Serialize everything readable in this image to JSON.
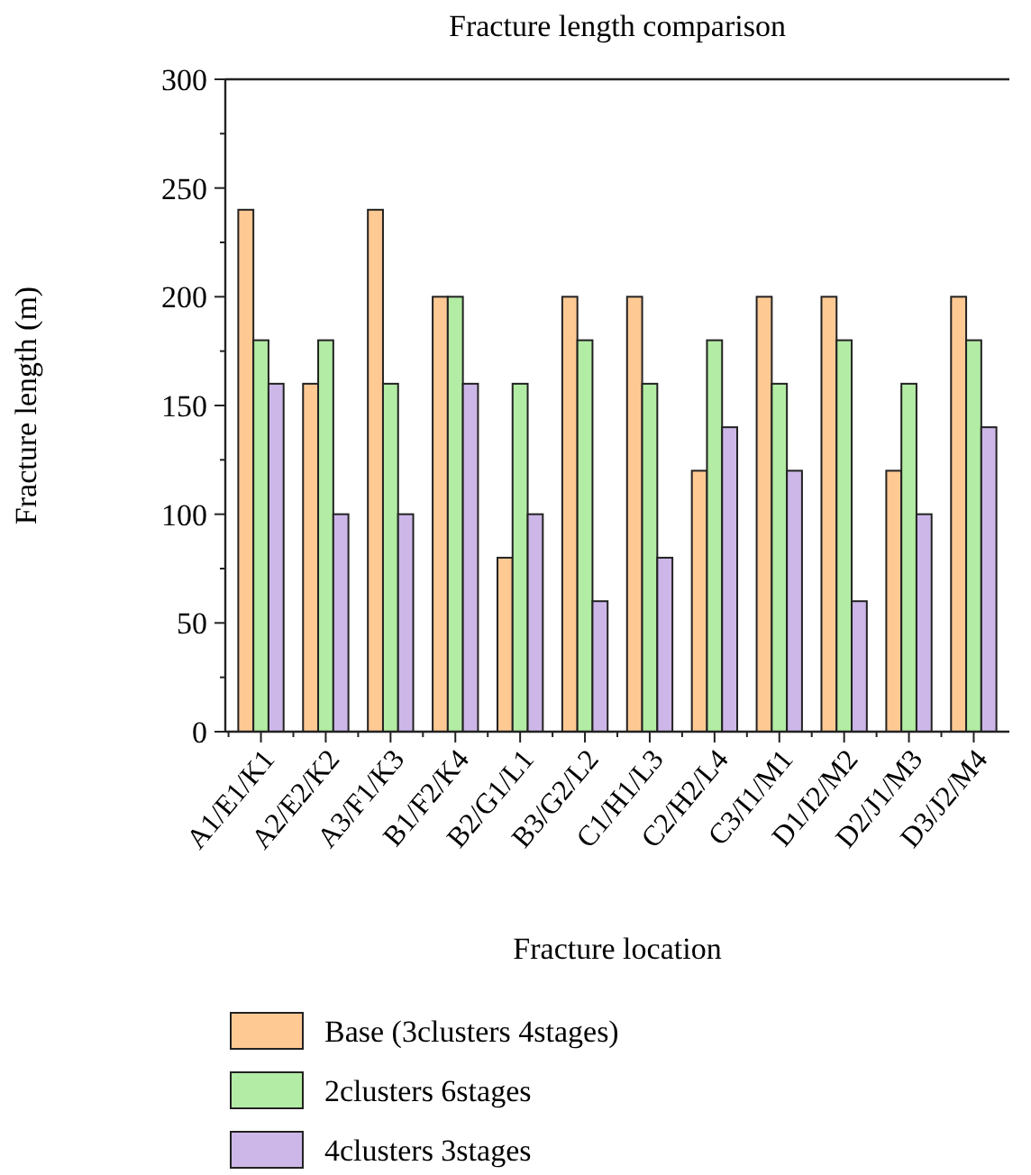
{
  "chart_data": {
    "type": "bar",
    "title": "Fracture length comparison",
    "xlabel": "Fracture location",
    "ylabel": "Fracture length (m)",
    "categories": [
      "A1/E1/K1",
      "A2/E2/K2",
      "A3/F1/K3",
      "B1/F2/K4",
      "B2/G1/L1",
      "B3/G2/L2",
      "C1/H1/L3",
      "C2/H2/L4",
      "C3/I1/M1",
      "D1/I2/M2",
      "D2/J1/M3",
      "D3/J2/M4"
    ],
    "series": [
      {
        "name": "Base (3clusters 4stages)",
        "color": "#ffc994",
        "values": [
          240,
          160,
          240,
          200,
          80,
          200,
          200,
          120,
          200,
          200,
          120,
          200
        ]
      },
      {
        "name": "2clusters 6stages",
        "color": "#b3eca4",
        "values": [
          180,
          180,
          160,
          200,
          160,
          180,
          160,
          180,
          160,
          180,
          160,
          180
        ]
      },
      {
        "name": "4clusters 3stages",
        "color": "#cdb7e8",
        "values": [
          160,
          100,
          100,
          160,
          100,
          60,
          80,
          140,
          120,
          60,
          100,
          140
        ]
      }
    ],
    "ylim": [
      0,
      300
    ],
    "yticks": [
      0,
      {
        "value": 25,
        "label": null
      },
      50,
      {
        "value": 75,
        "label": null
      },
      100,
      {
        "value": 125,
        "label": null
      },
      150,
      {
        "value": 175,
        "label": null
      },
      200,
      {
        "value": 225,
        "label": null
      },
      250,
      {
        "value": 275,
        "label": null
      },
      300
    ],
    "grid": false,
    "legend": "bottom"
  }
}
